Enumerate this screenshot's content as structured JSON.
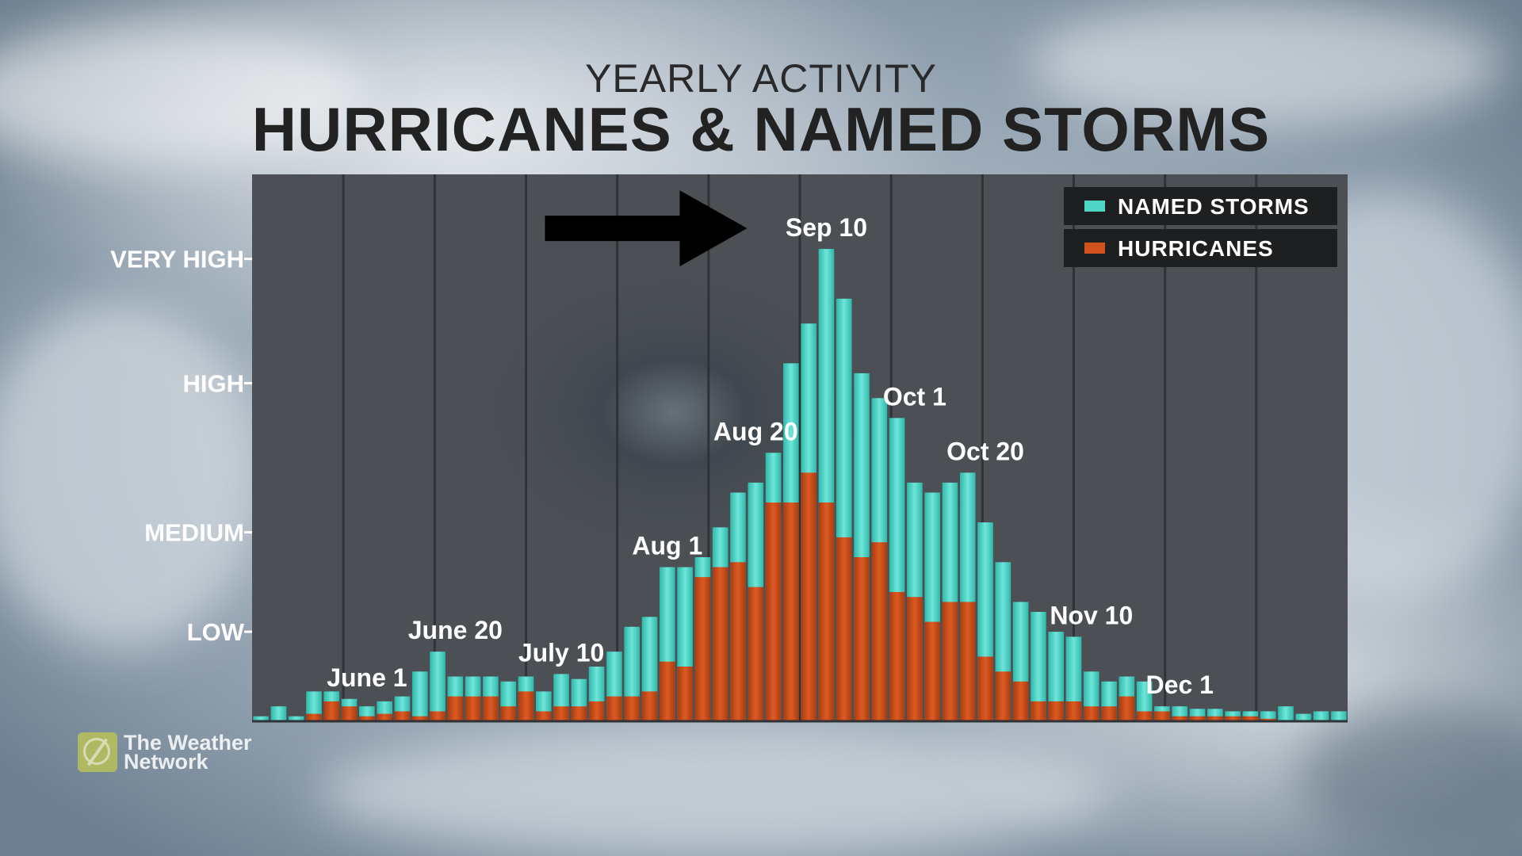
{
  "header": {
    "subtitle": "YEARLY ACTIVITY",
    "title": "HURRICANES & NAMED STORMS"
  },
  "brand": {
    "line1": "The Weather",
    "line2": "Network"
  },
  "chart_data": {
    "type": "bar",
    "stacking": "overlay",
    "y_levels": [
      {
        "label": "LOW",
        "value": 18
      },
      {
        "label": "MEDIUM",
        "value": 38
      },
      {
        "label": "HIGH",
        "value": 68
      },
      {
        "label": "VERY HIGH",
        "value": 93
      }
    ],
    "ylim": [
      0,
      110
    ],
    "legend": {
      "placement": "top-right",
      "entries": [
        {
          "name": "NAMED STORMS",
          "color": "#4fd6c7"
        },
        {
          "name": "HURRICANES",
          "color": "#d1521d"
        }
      ]
    },
    "colors": {
      "named_storms": "#4fd6c7",
      "hurricanes": "#d1521d",
      "plot_bg": "#4a4e53",
      "arrow": "#000000"
    },
    "grid": "vertical",
    "series": [
      {
        "name": "NAMED STORMS",
        "values": [
          1,
          3,
          1,
          6,
          6,
          4.5,
          3,
          4,
          5,
          10,
          14,
          9,
          9,
          9,
          8,
          9,
          6,
          9.5,
          8.5,
          11,
          14,
          19,
          21,
          31,
          31,
          33,
          39,
          46,
          48,
          54,
          72,
          80,
          95,
          85,
          70,
          65,
          61,
          48,
          46,
          48,
          50,
          40,
          32,
          24,
          22,
          18,
          17,
          10,
          8,
          9,
          8,
          3,
          3,
          2.5,
          2.5,
          2,
          2,
          2,
          3,
          1.5,
          2,
          2
        ]
      },
      {
        "name": "HURRICANES",
        "values": [
          0,
          0,
          0,
          1.5,
          4,
          3,
          1,
          1.5,
          2,
          1,
          2,
          5,
          5,
          5,
          3,
          6,
          2,
          3,
          3,
          4,
          5,
          5,
          6,
          12,
          11,
          29,
          31,
          32,
          27,
          44,
          44,
          50,
          44,
          37,
          33,
          36,
          26,
          25,
          20,
          24,
          24,
          13,
          10,
          8,
          4,
          4,
          4,
          3,
          3,
          5,
          2,
          2,
          1,
          1,
          1,
          1,
          1,
          0.5,
          0,
          0,
          0,
          0
        ]
      }
    ],
    "annotations": [
      {
        "text": "June 1",
        "x": 6
      },
      {
        "text": "June 20",
        "x": 11
      },
      {
        "text": "July 10",
        "x": 17
      },
      {
        "text": "Aug 1",
        "x": 23
      },
      {
        "text": "Aug 20",
        "x": 28
      },
      {
        "text": "Sep 10",
        "x": 32
      },
      {
        "text": "Oct 1",
        "x": 37
      },
      {
        "text": "Oct 20",
        "x": 41
      },
      {
        "text": "Nov 10",
        "x": 47
      },
      {
        "text": "Dec 1",
        "x": 52
      }
    ],
    "peak_arrow": {
      "points_to": "Sep 10"
    }
  }
}
